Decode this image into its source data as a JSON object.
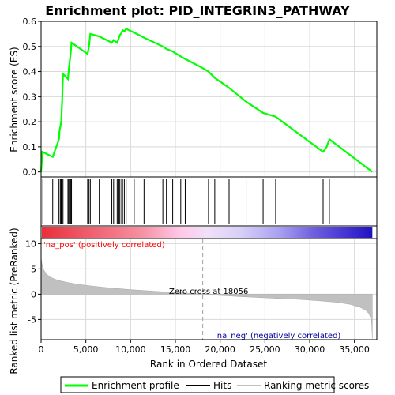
{
  "chart_data": {
    "type": "line",
    "title": "Enrichment plot: PID_INTEGRIN3_PATHWAY",
    "xlabel": "Rank in Ordered Dataset",
    "ylabel_top": "Enrichment score (ES)",
    "ylabel_bottom": "Ranked list metric (PreRanked)",
    "xlim": [
      0,
      37500
    ],
    "x_ticks": [
      0,
      5000,
      10000,
      15000,
      20000,
      25000,
      30000,
      35000
    ],
    "x_tick_labels": [
      "0",
      "5,000",
      "10,000",
      "15,000",
      "20,000",
      "25,000",
      "30,000",
      "35,000"
    ],
    "es_ylim": [
      -0.02,
      0.6
    ],
    "es_ticks": [
      0.0,
      0.1,
      0.2,
      0.3,
      0.4,
      0.5,
      0.6
    ],
    "es_tick_labels": [
      "0.0",
      "0.1",
      "0.2",
      "0.3",
      "0.4",
      "0.5",
      "0.6"
    ],
    "metric_ylim": [
      -9,
      11
    ],
    "metric_ticks": [
      -5,
      0,
      5,
      10
    ],
    "metric_tick_labels": [
      "-5",
      "0",
      "5",
      "10"
    ],
    "grid": true,
    "legend_position": "bottom",
    "series": [
      {
        "name": "Enrichment profile",
        "color": "#00ff00",
        "x": [
          0,
          150,
          1300,
          2000,
          2050,
          2150,
          2250,
          2350,
          2450,
          3000,
          3100,
          3200,
          3300,
          3400,
          5200,
          5350,
          5500,
          6500,
          7900,
          8100,
          8500,
          8700,
          8800,
          9000,
          9100,
          9300,
          9500,
          10400,
          11500,
          13600,
          14000,
          14700,
          15600,
          16100,
          18000,
          18700,
          19400,
          21000,
          22900,
          24800,
          26200,
          31500,
          31900,
          32200,
          37000
        ],
        "y": [
          0.0,
          0.08,
          0.06,
          0.13,
          0.16,
          0.18,
          0.2,
          0.28,
          0.39,
          0.37,
          0.41,
          0.44,
          0.47,
          0.515,
          0.47,
          0.5,
          0.55,
          0.54,
          0.515,
          0.525,
          0.515,
          0.535,
          0.545,
          0.555,
          0.565,
          0.56,
          0.57,
          0.555,
          0.535,
          0.5,
          0.49,
          0.48,
          0.46,
          0.45,
          0.415,
          0.4,
          0.375,
          0.335,
          0.28,
          0.235,
          0.22,
          0.08,
          0.1,
          0.13,
          0.0
        ]
      }
    ],
    "hits": [
      200,
      1300,
      2000,
      2150,
      2250,
      2350,
      2450,
      3000,
      3100,
      3200,
      3300,
      3400,
      5200,
      5350,
      5500,
      6500,
      7900,
      8100,
      8500,
      8700,
      8800,
      9000,
      9100,
      9300,
      9500,
      10400,
      11500,
      13600,
      14000,
      14700,
      15600,
      16100,
      18700,
      19400,
      21000,
      22900,
      24800,
      26200,
      31500,
      32200
    ],
    "metric_curve": {
      "x": [
        0,
        100,
        300,
        600,
        1000,
        1500,
        2000,
        3000,
        4000,
        5000,
        7000,
        10000,
        13000,
        16000,
        18056,
        20000,
        23000,
        26000,
        29000,
        31000,
        33000,
        34500,
        35500,
        36200,
        36600,
        36900,
        37000
      ],
      "y": [
        7.2,
        6.0,
        4.8,
        4.0,
        3.4,
        3.0,
        2.7,
        2.3,
        2.0,
        1.75,
        1.35,
        0.9,
        0.55,
        0.25,
        0.0,
        -0.25,
        -0.55,
        -0.8,
        -1.05,
        -1.3,
        -1.6,
        -2.0,
        -2.5,
        -3.1,
        -3.8,
        -5.0,
        -8.8
      ]
    },
    "zero_cross": 18056,
    "annotations": {
      "pos_label": "'na_pos' (positively correlated)",
      "neg_label": "'na_neg' (negatively correlated)",
      "zero_cross_label": "Zero cross at 18056"
    },
    "legend": [
      {
        "label": "Enrichment profile",
        "color": "#00ff00",
        "kind": "line"
      },
      {
        "label": "Hits",
        "color": "#000000",
        "kind": "line"
      },
      {
        "label": "Ranking metric scores",
        "color": "#c0c0c0",
        "kind": "line"
      }
    ],
    "colors": {
      "pos_label": "#ff0000",
      "neg_label": "#0000a0",
      "metric_fill": "#c0c0c0",
      "grid": "#d8d8d8"
    }
  }
}
